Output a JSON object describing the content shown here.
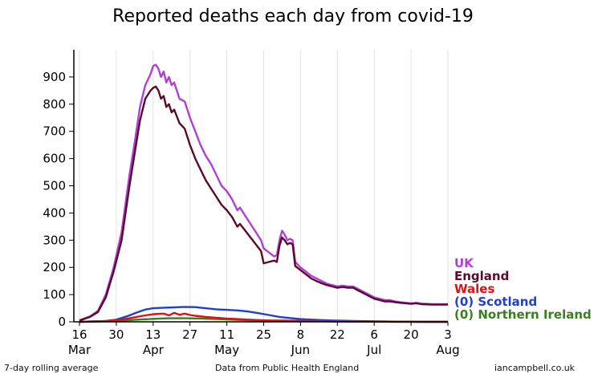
{
  "chart_data": {
    "type": "line",
    "title": "Reported deaths each day from covid-19",
    "ylim": [
      0,
      1000
    ],
    "yticks": [
      0,
      100,
      200,
      300,
      400,
      500,
      600,
      700,
      800,
      900
    ],
    "x_days_start": "16 Mar",
    "x_days_end": "3 Aug",
    "xticks": [
      {
        "day": 0,
        "label": "16",
        "month": "Mar"
      },
      {
        "day": 14,
        "label": "30",
        "month": ""
      },
      {
        "day": 28,
        "label": "13",
        "month": "Apr"
      },
      {
        "day": 42,
        "label": "27",
        "month": ""
      },
      {
        "day": 56,
        "label": "11",
        "month": "May"
      },
      {
        "day": 70,
        "label": "25",
        "month": ""
      },
      {
        "day": 84,
        "label": "8",
        "month": "Jun"
      },
      {
        "day": 98,
        "label": "22",
        "month": ""
      },
      {
        "day": 112,
        "label": "6",
        "month": "Jul"
      },
      {
        "day": 126,
        "label": "20",
        "month": ""
      },
      {
        "day": 140,
        "label": "3",
        "month": "Aug"
      }
    ],
    "series": [
      {
        "name": "UK",
        "legend_label": "UK",
        "color": "#b03fd6",
        "points": [
          [
            0,
            5
          ],
          [
            4,
            20
          ],
          [
            7,
            40
          ],
          [
            10,
            100
          ],
          [
            13,
            200
          ],
          [
            16,
            330
          ],
          [
            19,
            540
          ],
          [
            21,
            660
          ],
          [
            23,
            790
          ],
          [
            25,
            870
          ],
          [
            27,
            910
          ],
          [
            28,
            940
          ],
          [
            29,
            945
          ],
          [
            30,
            930
          ],
          [
            31,
            900
          ],
          [
            32,
            920
          ],
          [
            33,
            880
          ],
          [
            34,
            900
          ],
          [
            35,
            870
          ],
          [
            36,
            880
          ],
          [
            38,
            820
          ],
          [
            40,
            810
          ],
          [
            42,
            750
          ],
          [
            44,
            700
          ],
          [
            46,
            650
          ],
          [
            48,
            610
          ],
          [
            50,
            580
          ],
          [
            52,
            540
          ],
          [
            54,
            500
          ],
          [
            56,
            480
          ],
          [
            58,
            450
          ],
          [
            60,
            410
          ],
          [
            61,
            420
          ],
          [
            63,
            390
          ],
          [
            65,
            360
          ],
          [
            67,
            330
          ],
          [
            69,
            300
          ],
          [
            70,
            270
          ],
          [
            72,
            255
          ],
          [
            74,
            240
          ],
          [
            75,
            245
          ],
          [
            76,
            300
          ],
          [
            77,
            335
          ],
          [
            78,
            320
          ],
          [
            79,
            300
          ],
          [
            80,
            305
          ],
          [
            81,
            300
          ],
          [
            82,
            220
          ],
          [
            84,
            200
          ],
          [
            86,
            185
          ],
          [
            88,
            170
          ],
          [
            90,
            160
          ],
          [
            92,
            150
          ],
          [
            94,
            140
          ],
          [
            96,
            135
          ],
          [
            98,
            130
          ],
          [
            100,
            133
          ],
          [
            102,
            130
          ],
          [
            104,
            130
          ],
          [
            106,
            120
          ],
          [
            108,
            110
          ],
          [
            110,
            100
          ],
          [
            112,
            90
          ],
          [
            114,
            85
          ],
          [
            116,
            80
          ],
          [
            118,
            80
          ],
          [
            120,
            75
          ],
          [
            122,
            72
          ],
          [
            124,
            70
          ],
          [
            126,
            68
          ],
          [
            128,
            70
          ],
          [
            130,
            67
          ],
          [
            132,
            66
          ],
          [
            134,
            65
          ],
          [
            136,
            65
          ],
          [
            138,
            65
          ],
          [
            140,
            65
          ]
        ]
      },
      {
        "name": "England",
        "legend_label": "England",
        "color": "#5a0a2a",
        "points": [
          [
            0,
            5
          ],
          [
            4,
            18
          ],
          [
            7,
            36
          ],
          [
            10,
            90
          ],
          [
            13,
            185
          ],
          [
            16,
            300
          ],
          [
            19,
            500
          ],
          [
            21,
            620
          ],
          [
            23,
            740
          ],
          [
            25,
            820
          ],
          [
            27,
            850
          ],
          [
            28,
            860
          ],
          [
            29,
            865
          ],
          [
            30,
            850
          ],
          [
            31,
            820
          ],
          [
            32,
            830
          ],
          [
            33,
            790
          ],
          [
            34,
            800
          ],
          [
            35,
            770
          ],
          [
            36,
            780
          ],
          [
            38,
            730
          ],
          [
            40,
            710
          ],
          [
            42,
            650
          ],
          [
            44,
            600
          ],
          [
            46,
            560
          ],
          [
            48,
            520
          ],
          [
            50,
            490
          ],
          [
            52,
            460
          ],
          [
            54,
            430
          ],
          [
            56,
            410
          ],
          [
            58,
            385
          ],
          [
            60,
            350
          ],
          [
            61,
            360
          ],
          [
            63,
            335
          ],
          [
            65,
            310
          ],
          [
            67,
            285
          ],
          [
            69,
            260
          ],
          [
            70,
            215
          ],
          [
            72,
            220
          ],
          [
            74,
            225
          ],
          [
            75,
            220
          ],
          [
            76,
            280
          ],
          [
            77,
            310
          ],
          [
            78,
            300
          ],
          [
            79,
            285
          ],
          [
            80,
            290
          ],
          [
            81,
            285
          ],
          [
            82,
            205
          ],
          [
            84,
            190
          ],
          [
            86,
            175
          ],
          [
            88,
            160
          ],
          [
            90,
            150
          ],
          [
            92,
            142
          ],
          [
            94,
            135
          ],
          [
            96,
            130
          ],
          [
            98,
            125
          ],
          [
            100,
            128
          ],
          [
            102,
            125
          ],
          [
            104,
            125
          ],
          [
            106,
            115
          ],
          [
            108,
            105
          ],
          [
            110,
            95
          ],
          [
            112,
            85
          ],
          [
            114,
            80
          ],
          [
            116,
            75
          ],
          [
            118,
            75
          ],
          [
            120,
            72
          ],
          [
            122,
            70
          ],
          [
            124,
            68
          ],
          [
            126,
            66
          ],
          [
            128,
            68
          ],
          [
            130,
            65
          ],
          [
            132,
            64
          ],
          [
            134,
            63
          ],
          [
            136,
            63
          ],
          [
            138,
            63
          ],
          [
            140,
            63
          ]
        ]
      },
      {
        "name": "Wales",
        "legend_label": "Wales",
        "color": "#dd1111",
        "points": [
          [
            0,
            0
          ],
          [
            10,
            3
          ],
          [
            16,
            8
          ],
          [
            20,
            15
          ],
          [
            24,
            22
          ],
          [
            28,
            28
          ],
          [
            32,
            30
          ],
          [
            34,
            24
          ],
          [
            36,
            33
          ],
          [
            38,
            26
          ],
          [
            40,
            30
          ],
          [
            42,
            25
          ],
          [
            44,
            22
          ],
          [
            48,
            18
          ],
          [
            52,
            15
          ],
          [
            56,
            12
          ],
          [
            60,
            10
          ],
          [
            66,
            7
          ],
          [
            72,
            5
          ],
          [
            80,
            4
          ],
          [
            90,
            3
          ],
          [
            100,
            2
          ],
          [
            110,
            1
          ],
          [
            120,
            1
          ],
          [
            140,
            0
          ]
        ]
      },
      {
        "name": "Scotland",
        "legend_label": "(0) Scotland",
        "color": "#1f3fcf",
        "points": [
          [
            0,
            0
          ],
          [
            10,
            3
          ],
          [
            14,
            8
          ],
          [
            18,
            20
          ],
          [
            22,
            35
          ],
          [
            25,
            45
          ],
          [
            28,
            50
          ],
          [
            32,
            52
          ],
          [
            36,
            53
          ],
          [
            40,
            55
          ],
          [
            44,
            54
          ],
          [
            48,
            50
          ],
          [
            52,
            46
          ],
          [
            56,
            44
          ],
          [
            60,
            42
          ],
          [
            64,
            38
          ],
          [
            68,
            32
          ],
          [
            72,
            25
          ],
          [
            76,
            18
          ],
          [
            80,
            14
          ],
          [
            84,
            10
          ],
          [
            90,
            7
          ],
          [
            96,
            5
          ],
          [
            104,
            3
          ],
          [
            112,
            2
          ],
          [
            120,
            1
          ],
          [
            130,
            0
          ],
          [
            140,
            0
          ]
        ]
      },
      {
        "name": "Northern Ireland",
        "legend_label": "(0) Northern Ireland",
        "color": "#3a7d22",
        "points": [
          [
            0,
            0
          ],
          [
            10,
            2
          ],
          [
            16,
            4
          ],
          [
            22,
            8
          ],
          [
            28,
            11
          ],
          [
            34,
            13
          ],
          [
            40,
            13
          ],
          [
            46,
            12
          ],
          [
            52,
            10
          ],
          [
            58,
            8
          ],
          [
            64,
            6
          ],
          [
            70,
            5
          ],
          [
            76,
            4
          ],
          [
            84,
            3
          ],
          [
            92,
            2
          ],
          [
            100,
            1
          ],
          [
            110,
            1
          ],
          [
            120,
            0
          ],
          [
            140,
            0
          ]
        ]
      }
    ]
  },
  "footer": {
    "left": "7-day rolling average",
    "center": "Data from Public Health England",
    "right": "iancampbell.co.uk"
  }
}
